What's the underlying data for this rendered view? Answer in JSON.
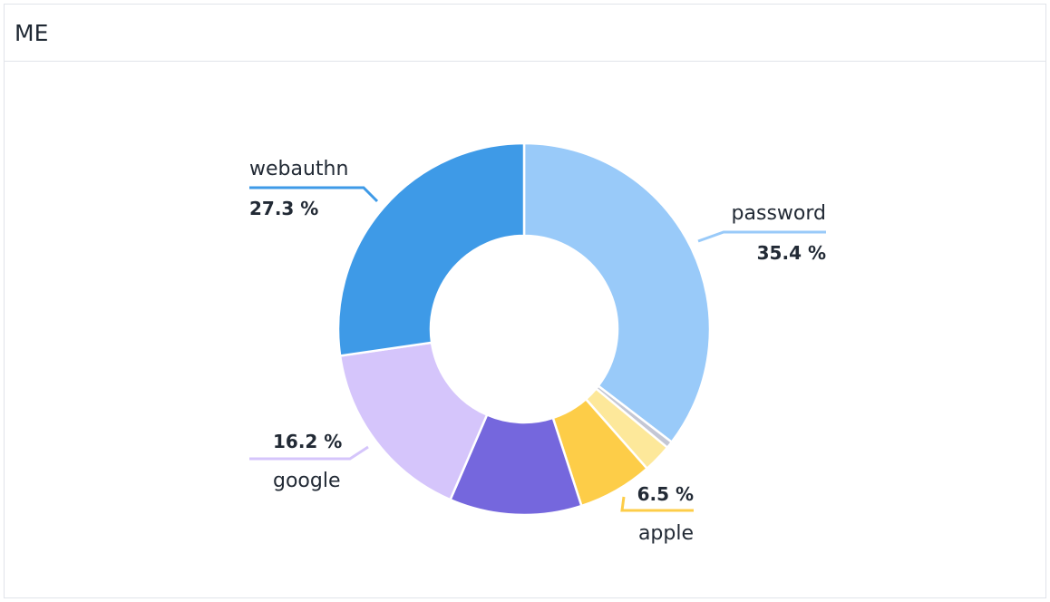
{
  "panel": {
    "title": "ME"
  },
  "chart_data": {
    "type": "pie",
    "variant": "donut",
    "title": "",
    "slices": [
      {
        "key": "password",
        "label": "password",
        "value": 35.4,
        "value_label": "35.4 %",
        "color": "#99caf9",
        "labeled": true
      },
      {
        "key": "other-gray",
        "label": "",
        "value": 0.6,
        "value_label": "",
        "color": "#c4c7d4",
        "labeled": false
      },
      {
        "key": "other-lightyellow",
        "label": "",
        "value": 2.5,
        "value_label": "",
        "color": "#fde89a",
        "labeled": false
      },
      {
        "key": "apple",
        "label": "apple",
        "value": 6.5,
        "value_label": "6.5 %",
        "color": "#fdcd48",
        "labeled": true
      },
      {
        "key": "other-purple",
        "label": "",
        "value": 11.5,
        "value_label": "",
        "color": "#7567dd",
        "labeled": false
      },
      {
        "key": "google",
        "label": "google",
        "value": 16.2,
        "value_label": "16.2 %",
        "color": "#d5c5fb",
        "labeled": true
      },
      {
        "key": "webauthn",
        "label": "webauthn",
        "value": 27.3,
        "value_label": "27.3 %",
        "color": "#3e9ae7",
        "labeled": true
      }
    ]
  }
}
